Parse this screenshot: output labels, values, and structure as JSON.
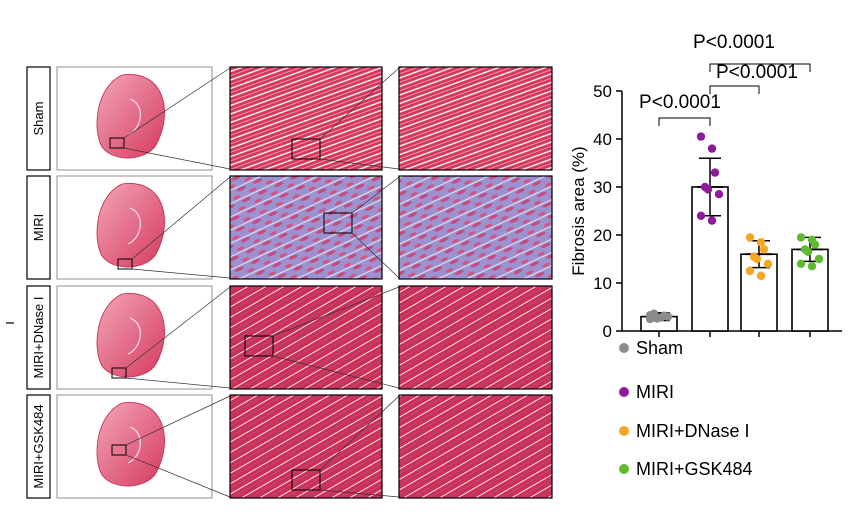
{
  "panel": {
    "rows": [
      {
        "label": "Sham",
        "tissue": "normal"
      },
      {
        "label": "MIRI",
        "tissue": "fibrotic"
      },
      {
        "label": "MIRI+DNase I",
        "tissue": "mild"
      },
      {
        "label": "MIRI+GSK484",
        "tissue": "mild"
      }
    ]
  },
  "colors": {
    "Sham": "#8c8c8c",
    "MIRI": "#8e1a9c",
    "MIRI+DNase I": "#f5a623",
    "MIRI+GSK484": "#5fba2d",
    "myocardium": "#d8355a",
    "collagen": "#7d7fc4"
  },
  "chart_data": {
    "type": "bar",
    "categories": [
      "Sham",
      "MIRI",
      "MIRI+DNase I",
      "MIRI+GSK484"
    ],
    "values": [
      3,
      30,
      16,
      17
    ],
    "error": [
      0.8,
      6,
      2.8,
      2.5
    ],
    "points": [
      [
        2.5,
        2.8,
        3.2,
        3.6,
        2.6,
        3.0,
        3.3
      ],
      [
        40.5,
        38,
        33,
        30,
        29.5,
        28.5,
        24,
        23
      ],
      [
        19.5,
        18.5,
        17,
        15.5,
        15,
        14,
        12.5,
        11.5
      ],
      [
        19.5,
        19,
        18,
        17,
        16.5,
        15,
        14,
        13.5
      ]
    ],
    "ylabel": "Fibrosis area (%)",
    "ylim": [
      0,
      50
    ],
    "yticks": [
      0,
      10,
      20,
      30,
      40,
      50
    ],
    "legend": "below",
    "annotations": [
      {
        "text": "P<0.0001",
        "from": 0,
        "to": 1
      },
      {
        "text": "P<0.0001",
        "from": 1,
        "to": 2
      },
      {
        "text": "P<0.0001",
        "from": 1,
        "to": 3
      }
    ]
  }
}
